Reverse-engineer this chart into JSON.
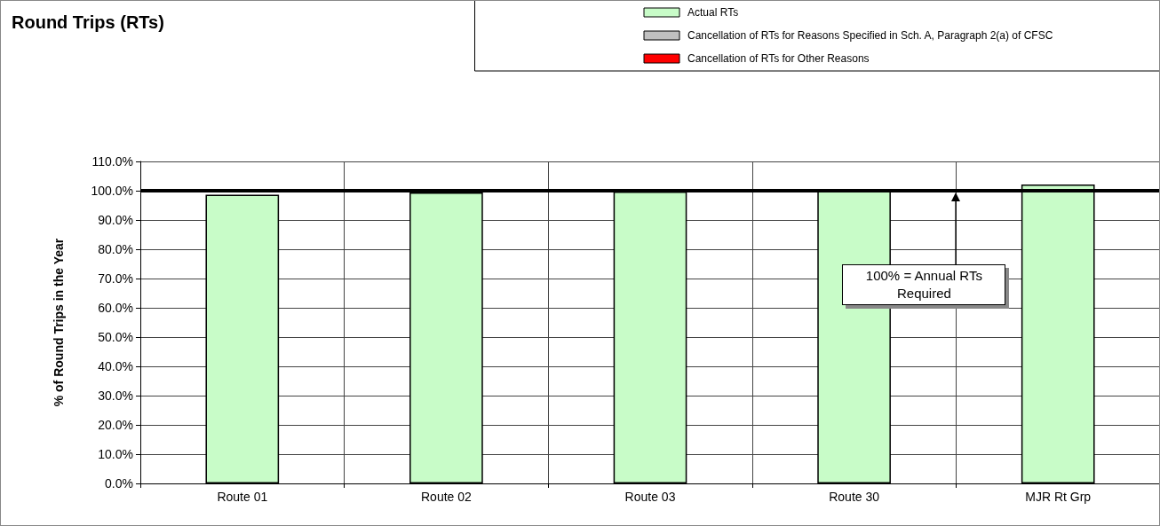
{
  "chart_data": {
    "type": "bar",
    "title": "Round Trips (RTs)",
    "ylabel": "% of Round Trips in the Year",
    "categories": [
      "Route 01",
      "Route 02",
      "Route 03",
      "Route 30",
      "MJR Rt Grp"
    ],
    "stacked": true,
    "series": [
      {
        "name": "Actual RTs",
        "color": "#c8fcc8",
        "values": [
          98.6,
          99.4,
          99.7,
          99.9,
          102.1
        ]
      },
      {
        "name": "Cancellation of RTs for Reasons Specified in Sch. A, Paragraph 2(a) of CFSC",
        "color": "#c0c0c0",
        "values": [
          0,
          0,
          0,
          0,
          0
        ]
      },
      {
        "name": "Cancellation of RTs for Other Reasons",
        "color": "#ff0000",
        "values": [
          0,
          0,
          0,
          0,
          0
        ]
      }
    ],
    "ylim": [
      0,
      110
    ],
    "yticks": [
      {
        "value": 0,
        "label": "0.0%"
      },
      {
        "value": 10,
        "label": "10.0%"
      },
      {
        "value": 20,
        "label": "20.0%"
      },
      {
        "value": 30,
        "label": "30.0%"
      },
      {
        "value": 40,
        "label": "40.0%"
      },
      {
        "value": 50,
        "label": "50.0%"
      },
      {
        "value": 60,
        "label": "60.0%"
      },
      {
        "value": 70,
        "label": "70.0%"
      },
      {
        "value": 80,
        "label": "80.0%"
      },
      {
        "value": 90,
        "label": "90.0%"
      },
      {
        "value": 100,
        "label": "100.0%"
      },
      {
        "value": 110,
        "label": "110.0%"
      }
    ],
    "ref_lines": [
      {
        "axis": "y",
        "value": 100,
        "color": "#000000"
      }
    ],
    "annotations": [
      "100% = Annual RTs Required"
    ],
    "grid": true,
    "legend": "top right"
  }
}
